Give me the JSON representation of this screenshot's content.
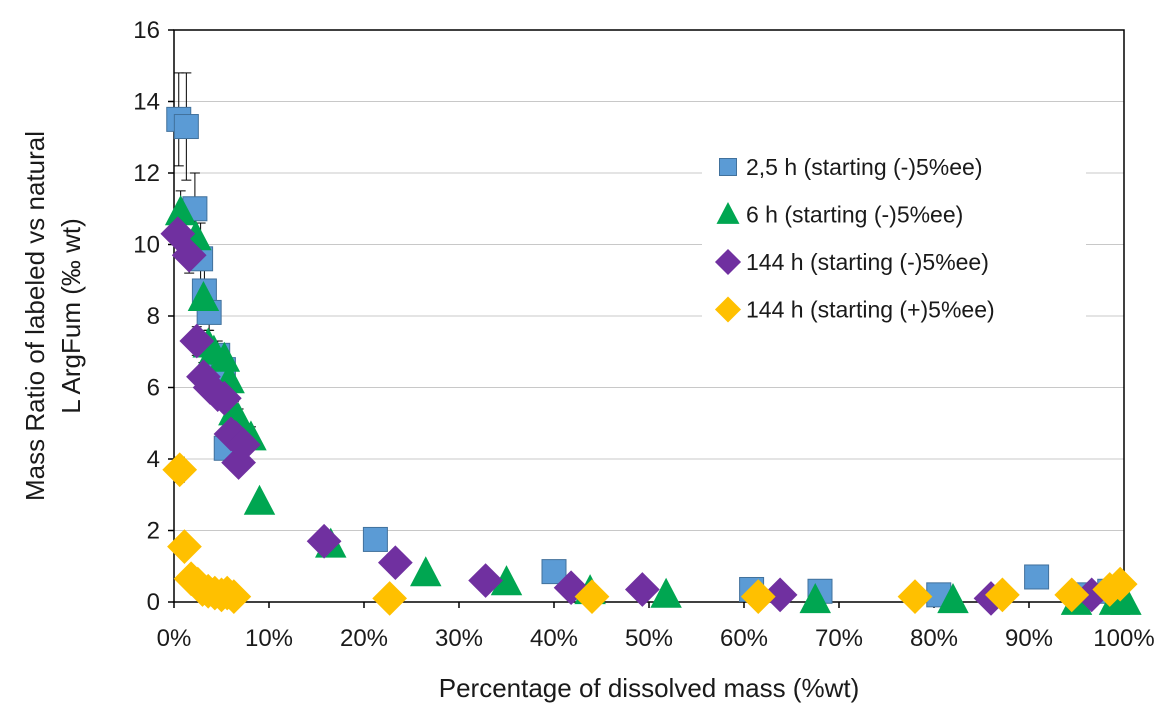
{
  "chart_data": {
    "type": "scatter",
    "xlabel": "Percentage of dissolved mass (%wt)",
    "ylabel_lines": [
      "Mass Ratio of labeled vs natural",
      "L  ArgFum (‰ wt)"
    ],
    "xlim": [
      0,
      100
    ],
    "ylim": [
      0,
      16
    ],
    "x_ticks": [
      0,
      10,
      20,
      30,
      40,
      50,
      60,
      70,
      80,
      90,
      100
    ],
    "x_tick_labels": [
      "0%",
      "10%",
      "20%",
      "30%",
      "40%",
      "50%",
      "60%",
      "70%",
      "80%",
      "90%",
      "100%"
    ],
    "y_ticks": [
      0,
      2,
      4,
      6,
      8,
      10,
      12,
      14,
      16
    ],
    "y_tick_labels": [
      "0",
      "2",
      "4",
      "6",
      "8",
      "10",
      "12",
      "14",
      "16"
    ],
    "grid": "horizontal",
    "legend_position": "right",
    "series": [
      {
        "name": "2,5 h (starting (-)5%ee)",
        "marker": "square",
        "color": "#5B9BD5",
        "x": [
          0.5,
          1.3,
          2.2,
          2.8,
          3.2,
          3.7,
          4.6,
          5.2,
          5.5,
          21.2,
          40.0,
          60.8,
          68.0,
          80.5,
          90.8,
          95.5,
          98.5
        ],
        "y": [
          13.5,
          13.3,
          11.0,
          9.6,
          8.7,
          8.1,
          6.9,
          6.5,
          4.3,
          1.75,
          0.85,
          0.35,
          0.3,
          0.2,
          0.7,
          0.2,
          0.3
        ],
        "err": [
          1.3,
          1.5,
          1.0,
          1.0,
          0.6,
          0.5,
          0.4,
          0.4,
          0.3,
          0.1,
          0.1,
          0,
          0,
          0,
          0,
          0,
          0
        ]
      },
      {
        "name": "6 h (starting (-)5%ee)",
        "marker": "triangle",
        "color": "#00A651",
        "x": [
          0.7,
          2.3,
          3.1,
          3.6,
          4.2,
          5.3,
          5.8,
          6.3,
          6.8,
          8.1,
          9.0,
          16.5,
          26.5,
          35.0,
          43.8,
          51.8,
          67.5,
          82.0,
          95.0,
          99.0,
          100.2
        ],
        "y": [
          10.9,
          10.2,
          8.5,
          7.2,
          7.0,
          6.8,
          6.2,
          5.3,
          5.1,
          4.6,
          2.8,
          1.6,
          0.8,
          0.55,
          0.3,
          0.2,
          0.05,
          0.05,
          0.0,
          0.0,
          0.0
        ],
        "err": [
          0.6,
          0.5,
          0.4,
          0.4,
          0.3,
          0.3,
          0.3,
          0.3,
          0.3,
          0.3,
          0.2,
          0.1,
          0.1,
          0,
          0,
          0,
          0,
          0,
          0,
          0,
          0
        ]
      },
      {
        "name": "144 h (starting (-)5%ee)",
        "marker": "diamond",
        "color": "#7030A0",
        "x": [
          0.4,
          1.6,
          2.4,
          3.1,
          3.8,
          4.6,
          5.3,
          6.0,
          6.5,
          6.8,
          7.3,
          15.8,
          23.3,
          32.8,
          41.8,
          49.3,
          63.8,
          86.0,
          96.6
        ],
        "y": [
          10.3,
          9.7,
          7.3,
          6.3,
          6.0,
          5.8,
          5.7,
          4.7,
          4.6,
          3.9,
          4.4,
          1.7,
          1.1,
          0.6,
          0.4,
          0.35,
          0.2,
          0.1,
          0.2
        ],
        "err": [
          0.6,
          0.5,
          0.4,
          0.4,
          0.3,
          0.3,
          0.3,
          0.3,
          0.3,
          0.3,
          0.3,
          0.1,
          0.1,
          0,
          0,
          0,
          0,
          0,
          0
        ]
      },
      {
        "name": "144 h (starting (+)5%ee)",
        "marker": "diamond",
        "color": "#FFC000",
        "x": [
          0.6,
          1.1,
          1.8,
          2.5,
          3.0,
          3.6,
          4.3,
          5.0,
          5.6,
          6.3,
          22.7,
          44.0,
          61.5,
          78.0,
          87.2,
          94.5,
          98.5,
          99.6
        ],
        "y": [
          3.7,
          1.55,
          0.65,
          0.5,
          0.35,
          0.3,
          0.25,
          0.2,
          0.25,
          0.15,
          0.1,
          0.15,
          0.15,
          0.15,
          0.2,
          0.2,
          0.35,
          0.5
        ],
        "err": [
          0.35,
          0.15,
          0,
          0,
          0,
          0,
          0,
          0,
          0,
          0,
          0,
          0,
          0,
          0,
          0,
          0,
          0,
          0
        ]
      }
    ]
  }
}
